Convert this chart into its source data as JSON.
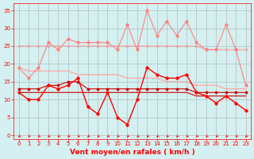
{
  "x": [
    0,
    1,
    2,
    3,
    4,
    5,
    6,
    7,
    8,
    9,
    10,
    11,
    12,
    13,
    14,
    15,
    16,
    17,
    18,
    19,
    20,
    21,
    22,
    23
  ],
  "series": [
    {
      "label": "rafales_top",
      "values": [
        19,
        16,
        19,
        26,
        24,
        27,
        26,
        26,
        26,
        26,
        24,
        31,
        24,
        35,
        28,
        32,
        28,
        32,
        26,
        24,
        24,
        31,
        24,
        14
      ],
      "color": "#ff8080",
      "lw": 0.8,
      "marker": "D",
      "ms": 1.8,
      "zorder": 2
    },
    {
      "label": "rafales_mean_upper",
      "values": [
        25,
        25,
        25,
        25,
        25,
        25,
        25,
        25,
        25,
        25,
        25,
        25,
        25,
        25,
        25,
        25,
        25,
        25,
        25,
        24,
        24,
        24,
        24,
        24
      ],
      "color": "#ffaaaa",
      "lw": 1.0,
      "marker": "D",
      "ms": 1.5,
      "zorder": 1
    },
    {
      "label": "rafales_mean_lower",
      "values": [
        19,
        18,
        18,
        18,
        18,
        18,
        17,
        17,
        17,
        17,
        17,
        16,
        16,
        16,
        16,
        15,
        15,
        15,
        14,
        14,
        14,
        13,
        13,
        13
      ],
      "color": "#ffaaaa",
      "lw": 1.0,
      "marker": null,
      "ms": 0,
      "zorder": 1
    },
    {
      "label": "vent_mean_upper",
      "values": [
        13,
        13,
        13,
        14,
        14,
        15,
        15,
        13,
        13,
        13,
        13,
        13,
        13,
        13,
        13,
        13,
        13,
        13,
        12,
        12,
        12,
        12,
        12,
        12
      ],
      "color": "#cc0000",
      "lw": 0.8,
      "marker": "D",
      "ms": 1.5,
      "zorder": 3
    },
    {
      "label": "vent_mean_lower",
      "values": [
        12,
        12,
        12,
        12,
        12,
        12,
        12,
        12,
        12,
        12,
        12,
        12,
        12,
        12,
        12,
        12,
        12,
        12,
        11,
        11,
        11,
        11,
        11,
        11
      ],
      "color": "#cc0000",
      "lw": 0.8,
      "marker": null,
      "ms": 0,
      "zorder": 3
    },
    {
      "label": "vent_obs",
      "values": [
        12,
        10,
        10,
        14,
        13,
        14,
        16,
        8,
        6,
        12,
        5,
        3,
        10,
        19,
        17,
        16,
        16,
        17,
        12,
        11,
        9,
        11,
        9,
        7
      ],
      "color": "#ff0000",
      "lw": 1.0,
      "marker": "D",
      "ms": 1.8,
      "zorder": 4
    }
  ],
  "xlabel": "Vent moyen/en rafales ( km/h )",
  "xlabel_color": "#ff0000",
  "bg_color": "#d4f0f0",
  "grid_color": "#b0b0b0",
  "ylim": [
    -1,
    37
  ],
  "xlim": [
    -0.5,
    23.5
  ],
  "yticks": [
    0,
    5,
    10,
    15,
    20,
    25,
    30,
    35
  ],
  "xticks": [
    0,
    1,
    2,
    3,
    4,
    5,
    6,
    7,
    8,
    9,
    10,
    11,
    12,
    13,
    14,
    15,
    16,
    17,
    18,
    19,
    20,
    21,
    22,
    23
  ],
  "tick_color": "#ff0000",
  "tick_fontsize": 5.0,
  "xlabel_fontsize": 6.5,
  "arrow_color": "#ff0000"
}
